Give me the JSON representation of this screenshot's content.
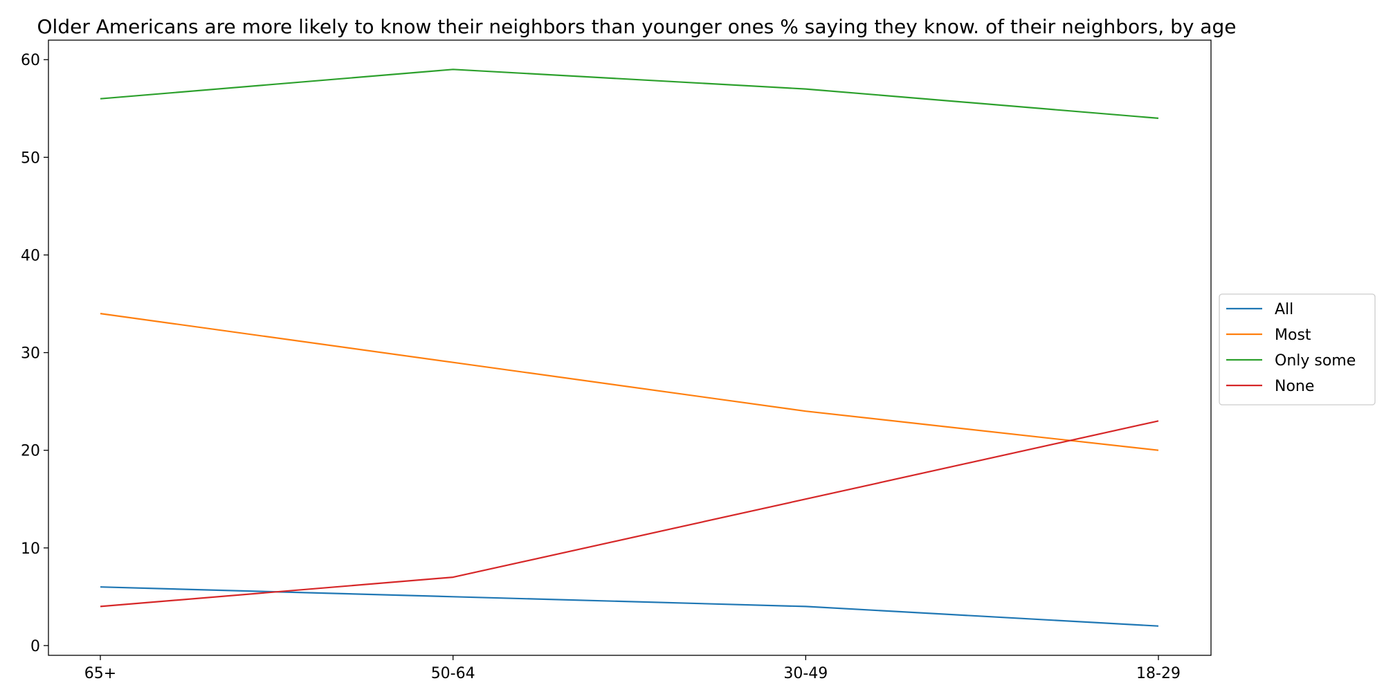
{
  "chart_data": {
    "type": "line",
    "title": "Older Americans are more likely to know their neighbors than younger ones % saying they know. of their neighbors, by age",
    "xlabel": "",
    "ylabel": "",
    "categories": [
      "65+",
      "50-64",
      "30-49",
      "18-29"
    ],
    "ylim": [
      -1,
      62
    ],
    "yticks": [
      0,
      10,
      20,
      30,
      40,
      50,
      60
    ],
    "grid": false,
    "legend_position": "center-right-outside",
    "series": [
      {
        "name": "All",
        "color": "#1f77b4",
        "values": [
          6,
          5,
          4,
          2
        ]
      },
      {
        "name": "Most",
        "color": "#ff7f0e",
        "values": [
          34,
          29,
          24,
          20
        ]
      },
      {
        "name": "Only some",
        "color": "#2ca02c",
        "values": [
          56,
          59,
          57,
          54
        ]
      },
      {
        "name": "None",
        "color": "#d62728",
        "values": [
          4,
          7,
          15,
          23
        ]
      }
    ]
  }
}
